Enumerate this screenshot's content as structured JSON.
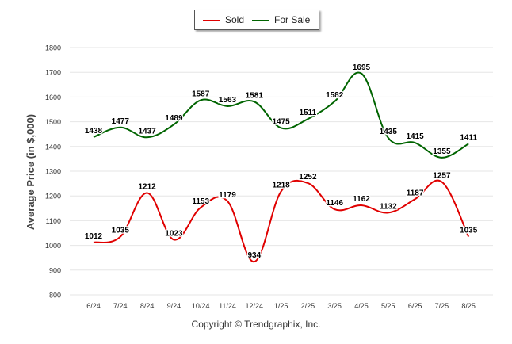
{
  "legend": {
    "sold_label": "Sold",
    "forsale_label": "For Sale"
  },
  "copyright": "Copyright © Trendgraphix, Inc.",
  "colors": {
    "sold": "#e00000",
    "forsale": "#006400",
    "grid": "#e6e6e6"
  },
  "chart_data": {
    "type": "line",
    "title": "",
    "xlabel": "",
    "ylabel": "Average Price (in $,000)",
    "ylim": [
      800,
      1800
    ],
    "yticks": [
      800,
      900,
      1000,
      1100,
      1200,
      1300,
      1400,
      1500,
      1600,
      1700,
      1800
    ],
    "grid": true,
    "legend_position": "top-center",
    "categories": [
      "6/24",
      "7/24",
      "8/24",
      "9/24",
      "10/24",
      "11/24",
      "12/24",
      "1/25",
      "2/25",
      "3/25",
      "4/25",
      "5/25",
      "6/25",
      "7/25",
      "8/25"
    ],
    "series": [
      {
        "name": "Sold",
        "values": [
          1012,
          1035,
          1212,
          1023,
          1153,
          1179,
          934,
          1218,
          1252,
          1146,
          1162,
          1132,
          1187,
          1257,
          1035
        ]
      },
      {
        "name": "For Sale",
        "values": [
          1438,
          1477,
          1437,
          1489,
          1587,
          1563,
          1581,
          1475,
          1511,
          1582,
          1695,
          1435,
          1415,
          1355,
          1411
        ]
      }
    ]
  }
}
